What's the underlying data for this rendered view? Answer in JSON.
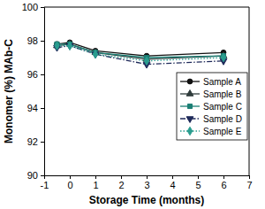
{
  "chart_data": {
    "type": "line",
    "x_label": "Storage Time (months)",
    "y_label": "Monomer (%) MAb-C",
    "x": [
      -0.5,
      0,
      1,
      3,
      6
    ],
    "series": [
      {
        "name": "Sample A",
        "color": "#111111",
        "marker": "circle",
        "line_style": "solid",
        "values": [
          97.8,
          97.9,
          97.4,
          97.1,
          97.3
        ]
      },
      {
        "name": "Sample B",
        "color": "#2f3b3b",
        "marker": "triangle",
        "line_style": "solid",
        "values": [
          97.7,
          97.8,
          97.3,
          96.9,
          97.1
        ]
      },
      {
        "name": "Sample C",
        "color": "#1b7f74",
        "marker": "square",
        "line_style": "solid",
        "values": [
          97.8,
          97.8,
          97.3,
          97.0,
          97.1
        ]
      },
      {
        "name": "Sample D",
        "color": "#1f2a5a",
        "marker": "triangle-down",
        "line_style": "dashdot",
        "values": [
          97.6,
          97.7,
          97.2,
          96.6,
          96.8
        ]
      },
      {
        "name": "Sample E",
        "color": "#2a9d8f",
        "marker": "diamond",
        "line_style": "dotted",
        "values": [
          97.7,
          97.7,
          97.2,
          96.8,
          97.0
        ]
      }
    ],
    "xlim": [
      -1,
      7
    ],
    "xticks": [
      -1,
      0,
      1,
      2,
      3,
      4,
      5,
      6,
      7
    ],
    "ylim": [
      90,
      100
    ],
    "yticks": [
      90,
      92,
      94,
      96,
      98,
      100
    ],
    "grid": false,
    "legend": "right"
  }
}
